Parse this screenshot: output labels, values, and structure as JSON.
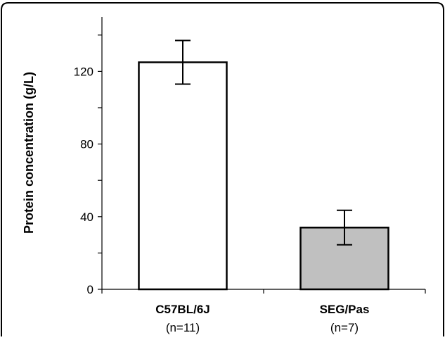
{
  "chart_data": {
    "type": "bar",
    "title": "",
    "xlabel": "",
    "ylabel": "Protein concentration (g/L)",
    "ylim": [
      0,
      150
    ],
    "yticks": [
      {
        "value": 0,
        "label": "0"
      },
      {
        "value": 40,
        "label": "40"
      },
      {
        "value": 80,
        "label": "80"
      },
      {
        "value": 120,
        "label": "120"
      }
    ],
    "minor_ticks": [
      20,
      60,
      100,
      140
    ],
    "categories": [
      "C57BL/6J",
      "SEG/Pas"
    ],
    "sample_sizes": [
      "(n=11)",
      "(n=7)"
    ],
    "values": [
      125,
      34
    ],
    "error": [
      12,
      9.5
    ],
    "bar_colors": [
      "#ffffff",
      "#c0c0c0"
    ],
    "grid": false,
    "legend": "none"
  }
}
